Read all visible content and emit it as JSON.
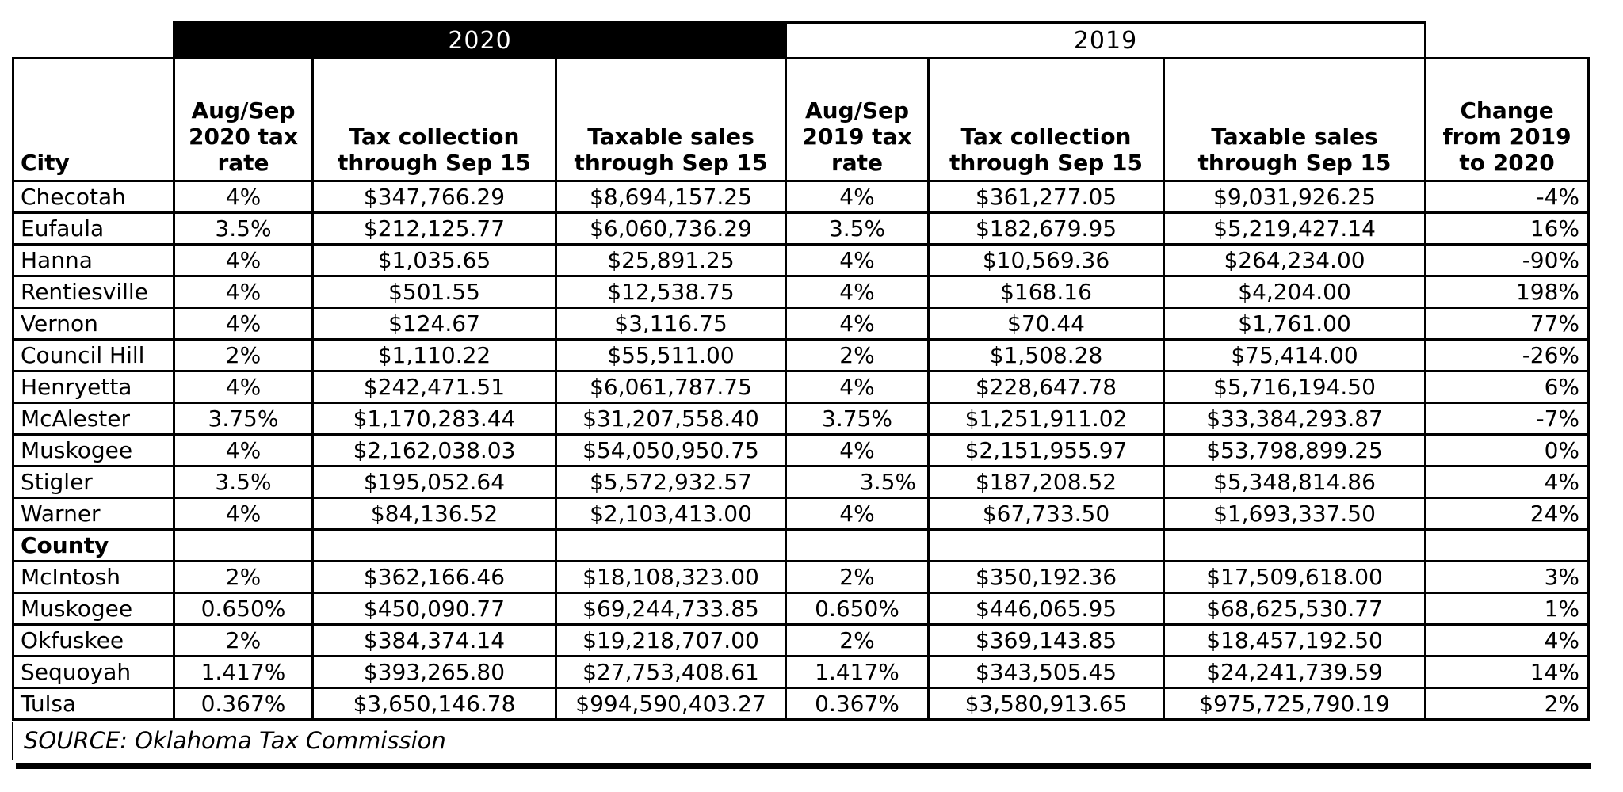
{
  "table": {
    "year_bands": [
      {
        "label": "2020",
        "style": "black",
        "bg": "#000000",
        "fg": "#ffffff"
      },
      {
        "label": "2019",
        "style": "white",
        "bg": "#ffffff",
        "fg": "#000000"
      }
    ],
    "columns": [
      "City",
      "Aug/Sep\n2020 tax\nrate",
      "Tax collection\nthrough Sep 15",
      "Taxable sales\nthrough Sep 15",
      "Aug/Sep\n2019 tax\nrate",
      "Tax collection\nthrough Sep 15",
      "Taxable sales\nthrough Sep 15",
      "Change\nfrom 2019\nto 2020"
    ],
    "city_rows": [
      [
        "Checotah",
        "4%",
        "$347,766.29",
        "$8,694,157.25",
        "4%",
        "$361,277.05",
        "$9,031,926.25",
        "-4%"
      ],
      [
        "Eufaula",
        "3.5%",
        "$212,125.77",
        "$6,060,736.29",
        "3.5%",
        "$182,679.95",
        "$5,219,427.14",
        "16%"
      ],
      [
        "Hanna",
        "4%",
        "$1,035.65",
        "$25,891.25",
        "4%",
        "$10,569.36",
        "$264,234.00",
        "-90%"
      ],
      [
        "Rentiesville",
        "4%",
        "$501.55",
        "$12,538.75",
        "4%",
        "$168.16",
        "$4,204.00",
        "198%"
      ],
      [
        "Vernon",
        "4%",
        "$124.67",
        "$3,116.75",
        "4%",
        "$70.44",
        "$1,761.00",
        "77%"
      ],
      [
        "Council Hill",
        "2%",
        "$1,110.22",
        "$55,511.00",
        "2%",
        "$1,508.28",
        "$75,414.00",
        "-26%"
      ],
      [
        "Henryetta",
        "4%",
        "$242,471.51",
        "$6,061,787.75",
        "4%",
        "$228,647.78",
        "$5,716,194.50",
        "6%"
      ],
      [
        "McAlester",
        "3.75%",
        "$1,170,283.44",
        "$31,207,558.40",
        "3.75%",
        "$1,251,911.02",
        "$33,384,293.87",
        "-7%"
      ],
      [
        "Muskogee",
        "4%",
        "$2,162,038.03",
        "$54,050,950.75",
        "4%",
        "$2,151,955.97",
        "$53,798,899.25",
        "0%"
      ],
      [
        "Stigler",
        "3.5%",
        "$195,052.64",
        "$5,572,932.57",
        "3.5%",
        "$187,208.52",
        "$5,348,814.86",
        "4%"
      ],
      [
        "Warner",
        "4%",
        "$84,136.52",
        "$2,103,413.00",
        "4%",
        "$67,733.50",
        "$1,693,337.50",
        "24%"
      ]
    ],
    "county_section_label": "County",
    "county_rows": [
      [
        "McIntosh",
        "2%",
        "$362,166.46",
        "$18,108,323.00",
        "2%",
        "$350,192.36",
        "$17,509,618.00",
        "3%"
      ],
      [
        "Muskogee",
        "0.650%",
        "$450,090.77",
        "$69,244,733.85",
        "0.650%",
        "$446,065.95",
        "$68,625,530.77",
        "1%"
      ],
      [
        "Okfuskee",
        "2%",
        "$384,374.14",
        "$19,218,707.00",
        "2%",
        "$369,143.85",
        "$18,457,192.50",
        "4%"
      ],
      [
        "Sequoyah",
        "1.417%",
        "$393,265.80",
        "$27,753,408.61",
        "1.417%",
        "$343,505.45",
        "$24,241,739.59",
        "14%"
      ],
      [
        "Tulsa",
        "0.367%",
        "$3,650,146.78",
        "$994,590,403.27",
        "0.367%",
        "$3,580,913.65",
        "$975,725,790.19",
        "2%"
      ]
    ],
    "align_overrides": [
      {
        "row": "Stigler",
        "column_index": 4,
        "align": "right"
      }
    ],
    "source": "SOURCE: Oklahoma Tax Commission"
  }
}
